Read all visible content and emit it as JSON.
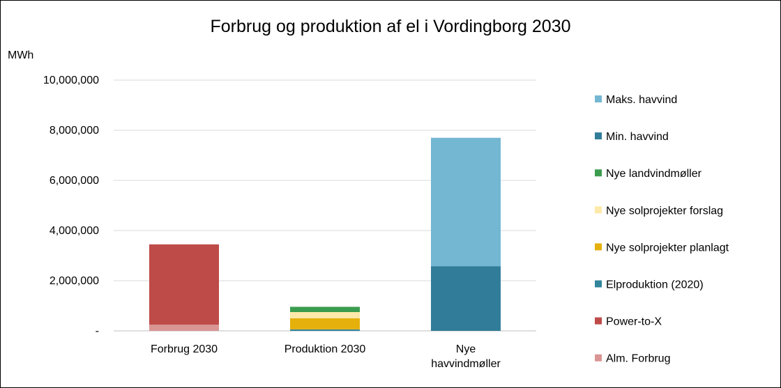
{
  "chart_data": {
    "type": "bar",
    "stacked": true,
    "title": "Forbrug og produktion af el i Vordingborg 2030",
    "ylabel": "MWh",
    "xlabel": "",
    "ylim": [
      0,
      10000000
    ],
    "yticks": [
      0,
      2000000,
      4000000,
      6000000,
      8000000,
      10000000
    ],
    "ytick_labels": [
      "-",
      "2,000,000",
      "4,000,000",
      "6,000,000",
      "8,000,000",
      "10,000,000"
    ],
    "grid": true,
    "legend_position": "right",
    "categories": [
      [
        "Forbrug 2030"
      ],
      [
        "Produktion 2030"
      ],
      [
        "Nye",
        "havvindmøller"
      ]
    ],
    "series": [
      {
        "name": "Alm. Forbrug",
        "color": "#D99594",
        "values": [
          250000,
          0,
          0
        ]
      },
      {
        "name": "Power-to-X",
        "color": "#BE4B48",
        "values": [
          3200000,
          0,
          0
        ]
      },
      {
        "name": "Elproduktion (2020)",
        "color": "#31849B",
        "values": [
          0,
          60000,
          0
        ]
      },
      {
        "name": "Nye solprojekter planlagt",
        "color": "#E6B00C",
        "values": [
          0,
          440000,
          0
        ]
      },
      {
        "name": "Nye solprojekter forslag",
        "color": "#FDE9A9",
        "values": [
          0,
          250000,
          0
        ]
      },
      {
        "name": "Nye landvindmøller",
        "color": "#3B9C4E",
        "values": [
          0,
          210000,
          0
        ]
      },
      {
        "name": "Min. havvind",
        "color": "#317D99",
        "values": [
          0,
          0,
          2580000
        ]
      },
      {
        "name": "Maks. havvind",
        "color": "#74B7D3",
        "values": [
          0,
          0,
          5120000
        ]
      }
    ],
    "legend_order": [
      "Maks. havvind",
      "Min. havvind",
      "Nye landvindmøller",
      "Nye solprojekter forslag",
      "Nye solprojekter planlagt",
      "Elproduktion (2020)",
      "Power-to-X",
      "Alm. Forbrug"
    ]
  }
}
